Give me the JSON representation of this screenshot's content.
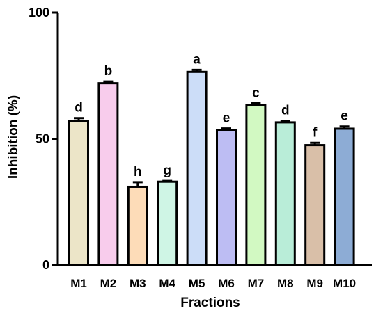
{
  "chart_data": {
    "type": "bar",
    "title": "",
    "xlabel": "Fractions",
    "ylabel": "Inhibition (%)",
    "ylim": [
      0,
      100
    ],
    "yticks": [
      0,
      50,
      100
    ],
    "grid": false,
    "categories": [
      "M1",
      "M2",
      "M3",
      "M4",
      "M5",
      "M6",
      "M7",
      "M8",
      "M9",
      "M10"
    ],
    "values": [
      57,
      72,
      31,
      33,
      76.5,
      53.5,
      63.5,
      56.5,
      47.5,
      54
    ],
    "errors": [
      1.2,
      0.7,
      1.8,
      0.3,
      0.8,
      0.6,
      0.6,
      0.6,
      0.9,
      0.9
    ],
    "significance": [
      "d",
      "b",
      "h",
      "g",
      "a",
      "e",
      "c",
      "d",
      "f",
      "e"
    ],
    "colors": [
      "#ECE5C8",
      "#F8CCEC",
      "#FDDCB8",
      "#CFF5E5",
      "#CCDDF8",
      "#BDBDF3",
      "#D2F9C2",
      "#B9EDD8",
      "#D9BFA8",
      "#8DACD5"
    ]
  }
}
